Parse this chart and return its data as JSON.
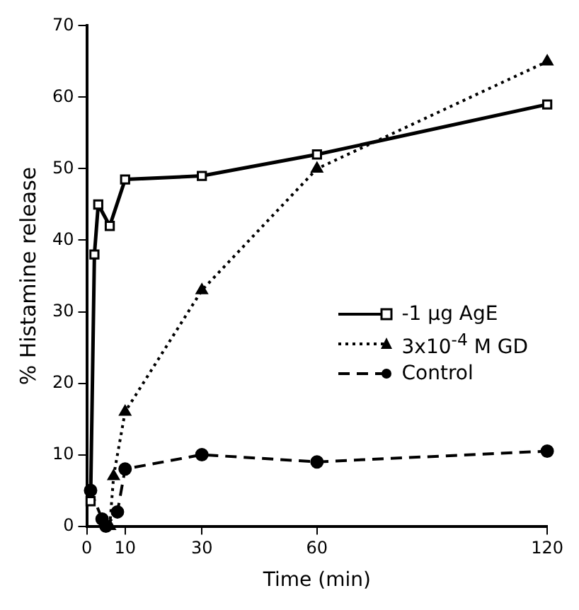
{
  "chart_data": {
    "type": "line",
    "xlabel": "Time (min)",
    "ylabel": "% Histamine release",
    "xlim": [
      0,
      120
    ],
    "xticks": [
      0,
      10,
      30,
      60,
      120
    ],
    "ylim": [
      0,
      70
    ],
    "yticks": [
      0,
      10,
      20,
      30,
      40,
      50,
      60,
      70
    ],
    "grid": false,
    "legend": "right",
    "series": [
      {
        "name": "-1 μg AgE",
        "color": "#000000",
        "marker": "square",
        "line_style": "solid",
        "x": [
          1,
          2,
          3,
          6,
          10,
          30,
          60,
          120
        ],
        "values": [
          3.5,
          38,
          45,
          42,
          48.5,
          49,
          52,
          59
        ]
      },
      {
        "name": "3x10$^{-4}$ M GD",
        "color": "#000000",
        "marker": "triangle",
        "line_style": "dotted",
        "x": [
          6,
          7,
          10,
          30,
          60,
          120
        ],
        "values": [
          0,
          7,
          16,
          33,
          50,
          65
        ]
      },
      {
        "name": "Control",
        "color": "#000000",
        "marker": "circle",
        "line_style": "dashed",
        "x": [
          1,
          4,
          5,
          8,
          10,
          30,
          60,
          120
        ],
        "values": [
          5,
          1,
          0,
          2,
          8,
          10,
          9,
          10.5
        ]
      }
    ]
  }
}
